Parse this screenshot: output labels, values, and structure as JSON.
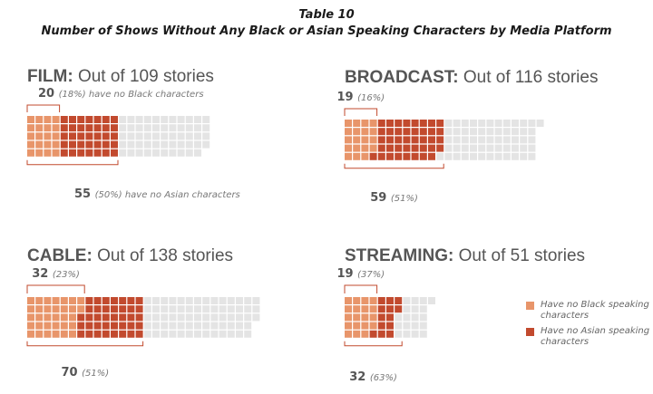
{
  "header": {
    "table_label": "Table 10",
    "title": "Number of Shows Without Any Black or Asian Speaking Characters by Media Platform"
  },
  "colors": {
    "no_black": "#E8956A",
    "no_asian": "#C24A2E",
    "remaining": "#E4E4E4",
    "bracket": "#C24A2E",
    "heading": "#555555",
    "annotation": "#777777"
  },
  "legend": [
    {
      "label": "Have no Black speaking characters",
      "color": "#E8956A"
    },
    {
      "label": "Have no Asian speaking characters",
      "color": "#C24A2E"
    }
  ],
  "chart_data": [
    {
      "type": "waffle",
      "platform": "FILM:",
      "subtitle": "Out of 109 stories",
      "total": 109,
      "no_black": {
        "count": 20,
        "pct": "(18%)",
        "suffix": "have no Black characters"
      },
      "no_asian": {
        "count": 55,
        "pct": "(50%)",
        "suffix": "have no Asian characters"
      }
    },
    {
      "type": "waffle",
      "platform": "BROADCAST:",
      "subtitle": "Out of 116 stories",
      "total": 116,
      "no_black": {
        "count": 19,
        "pct": "(16%)",
        "suffix": ""
      },
      "no_asian": {
        "count": 59,
        "pct": "(51%)",
        "suffix": ""
      }
    },
    {
      "type": "waffle",
      "platform": "CABLE:",
      "subtitle": "Out of 138 stories",
      "total": 138,
      "no_black": {
        "count": 32,
        "pct": "(23%)",
        "suffix": ""
      },
      "no_asian": {
        "count": 70,
        "pct": "(51%)",
        "suffix": ""
      }
    },
    {
      "type": "waffle",
      "platform": "STREAMING:",
      "subtitle": "Out of 51 stories",
      "total": 51,
      "no_black": {
        "count": 19,
        "pct": "(37%)",
        "suffix": ""
      },
      "no_asian": {
        "count": 32,
        "pct": "(63%)",
        "suffix": ""
      }
    }
  ]
}
